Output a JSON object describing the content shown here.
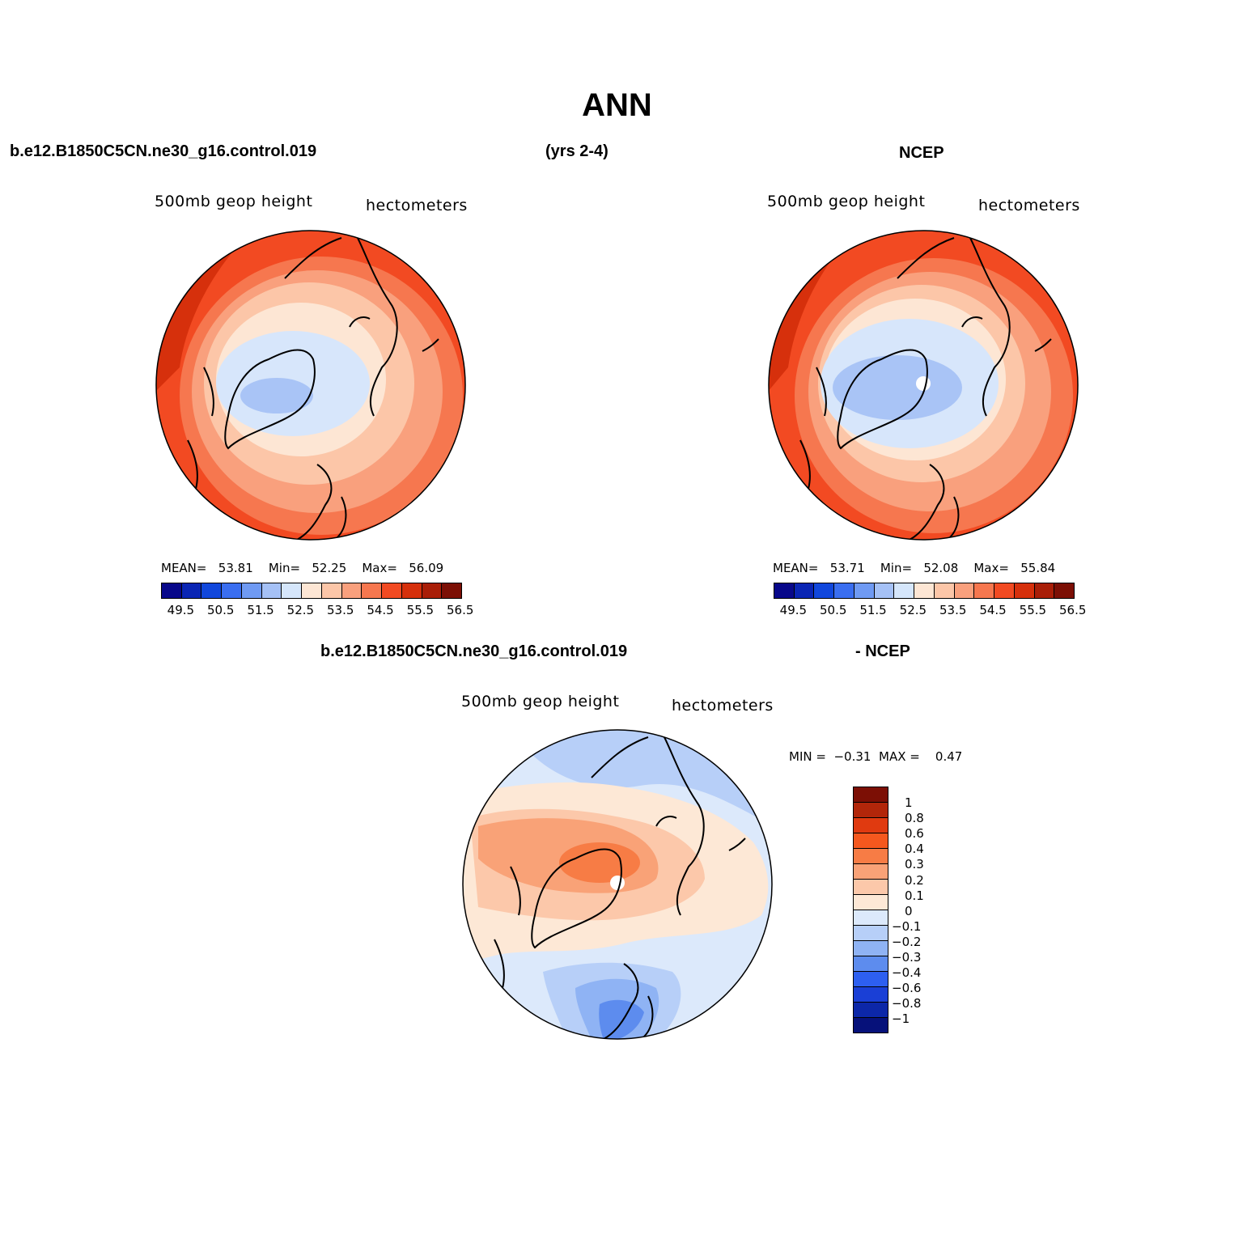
{
  "title": "ANN",
  "header": {
    "case_name": "b.e12.B1850C5CN.ne30_g16.control.019",
    "years": "(yrs 2-4)",
    "reference": "NCEP",
    "diff_case_name": "b.e12.B1850C5CN.ne30_g16.control.019",
    "diff_reference": "- NCEP"
  },
  "panels": {
    "model": {
      "label_left": "500mb geop height",
      "label_right": "hectometers",
      "mean_label": "MEAN=",
      "mean": "53.81",
      "min_label": "Min=",
      "min": "52.25",
      "max_label": "Max=",
      "max": "56.09"
    },
    "obs": {
      "label_left": "500mb geop height",
      "label_right": "hectometers",
      "mean_label": "MEAN=",
      "mean": "53.71",
      "min_label": "Min=",
      "min": "52.08",
      "max_label": "Max=",
      "max": "55.84"
    },
    "diff": {
      "label_left": "500mb geop height",
      "label_right": "hectometers",
      "min_label": "MIN =",
      "min": "−0.31",
      "max_label": "MAX =",
      "max": "0.47"
    }
  },
  "colorbar_abs": {
    "colors": [
      "#08088a",
      "#0a25b4",
      "#1147dc",
      "#3a6ef0",
      "#6f9af3",
      "#a5c1f6",
      "#d5e6fb",
      "#fde6d4",
      "#fcc6a8",
      "#f9a07d",
      "#f6774f",
      "#f24a22",
      "#d6300c",
      "#a91e08",
      "#7c0f05"
    ],
    "tick_labels": [
      "49.5",
      "50.5",
      "51.5",
      "52.5",
      "53.5",
      "54.5",
      "55.5",
      "56.5"
    ]
  },
  "colorbar_diff": {
    "colors": [
      "#7c0f05",
      "#b2260a",
      "#e03a10",
      "#f5581e",
      "#f77c45",
      "#f9a277",
      "#fcc8aa",
      "#fde8d6",
      "#dce9fb",
      "#b7cff8",
      "#8fb3f4",
      "#5d8cee",
      "#2d5ff0",
      "#1a3fd6",
      "#0c27a8",
      "#06117a"
    ],
    "labels": [
      "1",
      "0.8",
      "0.6",
      "0.4",
      "0.3",
      "0.2",
      "0.1",
      "0",
      "−0.1",
      "−0.2",
      "−0.3",
      "−0.4",
      "−0.6",
      "−0.8",
      "−1"
    ]
  },
  "map_colors": {
    "abs": [
      "#d7e6fb",
      "#a9c4f6",
      "#fde6d4",
      "#fcc6a8",
      "#f9a07d",
      "#f6774f",
      "#f24a22",
      "#d6300c"
    ],
    "diff": [
      "#fde8d6",
      "#fcc8aa",
      "#f9a277",
      "#f77c45",
      "#dce9fb",
      "#b7cff8",
      "#8fb3f4",
      "#5d8cee"
    ]
  }
}
